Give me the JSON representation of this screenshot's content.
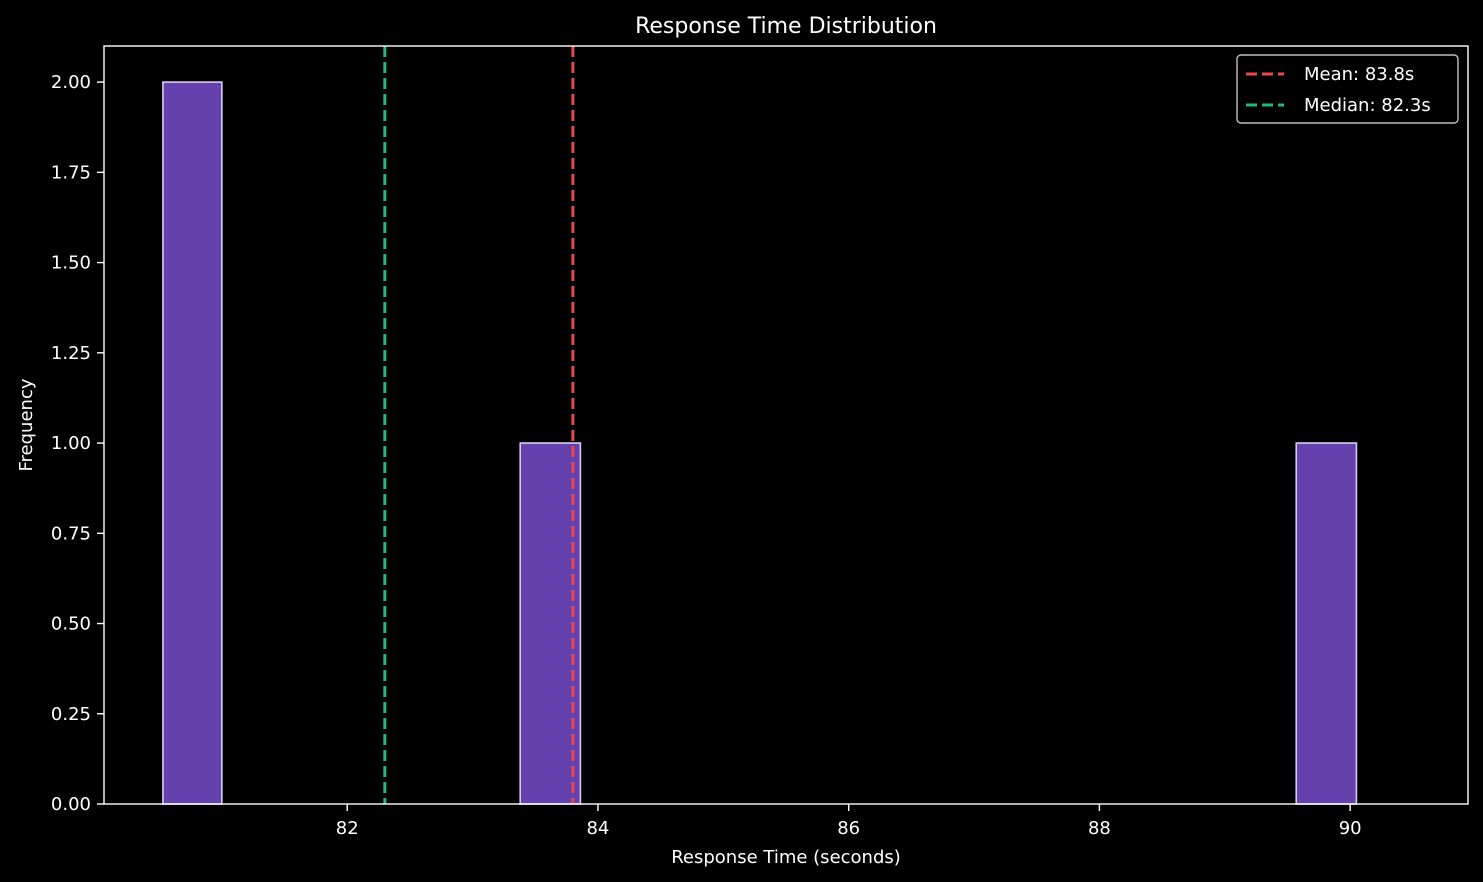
{
  "chart_data": {
    "type": "bar",
    "title": "Response Time Distribution",
    "xlabel": "Response Time (seconds)",
    "ylabel": "Frequency",
    "xlim": [
      80.06,
      90.94
    ],
    "ylim": [
      0,
      2.1
    ],
    "xticks": [
      82,
      84,
      86,
      88,
      90
    ],
    "yticks": [
      0.0,
      0.25,
      0.5,
      0.75,
      1.0,
      1.25,
      1.5,
      1.75,
      2.0
    ],
    "ytick_labels": [
      "0.00",
      "0.25",
      "0.50",
      "0.75",
      "1.00",
      "1.25",
      "1.50",
      "1.75",
      "2.00"
    ],
    "grid": false,
    "bars": [
      {
        "x_start": 80.53,
        "x_end": 81.0,
        "value": 2
      },
      {
        "x_start": 83.38,
        "x_end": 83.86,
        "value": 1
      },
      {
        "x_start": 89.57,
        "x_end": 90.05,
        "value": 1
      }
    ],
    "bar_color": "#6441ad",
    "bar_edge_color": "#d8cdf0",
    "reference_lines": [
      {
        "name": "Mean: 83.8s",
        "x": 83.8,
        "color": "#e8474b",
        "style": "dashed"
      },
      {
        "name": "Median: 82.3s",
        "x": 82.3,
        "color": "#21b97c",
        "style": "dashed"
      }
    ],
    "legend_position": "top-right"
  }
}
